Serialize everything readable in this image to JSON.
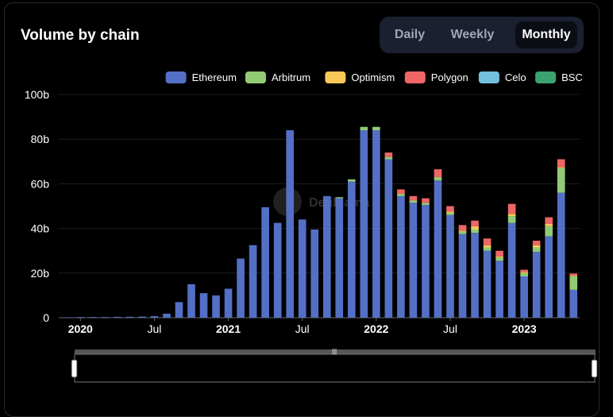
{
  "header": {
    "title": "Volume by chain"
  },
  "toggle": {
    "options": [
      "Daily",
      "Weekly",
      "Monthly"
    ],
    "active": "Monthly"
  },
  "watermark": "DefiLlama",
  "chart_data": {
    "type": "bar",
    "stacked": true,
    "ylim": [
      0,
      100
    ],
    "y_ticks": [
      "0",
      "20b",
      "40b",
      "60b",
      "80b",
      "100b"
    ],
    "x_ticks": [
      {
        "index": 1,
        "label": "2020",
        "bold": true
      },
      {
        "index": 7,
        "label": "Jul",
        "bold": false
      },
      {
        "index": 13,
        "label": "2021",
        "bold": true
      },
      {
        "index": 19,
        "label": "Jul",
        "bold": false
      },
      {
        "index": 25,
        "label": "2022",
        "bold": true
      },
      {
        "index": 31,
        "label": "Jul",
        "bold": false
      },
      {
        "index": 37,
        "label": "2023",
        "bold": true
      }
    ],
    "series": [
      {
        "name": "Ethereum",
        "color": "#5470c6",
        "values": [
          0.2,
          0.3,
          0.3,
          0.3,
          0.4,
          0.4,
          0.5,
          0.7,
          1.8,
          7,
          15,
          11,
          10,
          13,
          26.5,
          32.5,
          49.5,
          42.5,
          84,
          44,
          39.5,
          54.5,
          53.5,
          61,
          84,
          84,
          71,
          54.5,
          51.5,
          50.5,
          61.5,
          46,
          37.5,
          38,
          30,
          25.5,
          42.5,
          18.5,
          29.5,
          36.5,
          56,
          12.5
        ]
      },
      {
        "name": "Arbitrum",
        "color": "#91cc75",
        "values": [
          0,
          0,
          0,
          0,
          0,
          0,
          0,
          0,
          0,
          0,
          0,
          0,
          0,
          0,
          0,
          0,
          0,
          0,
          0,
          0,
          0,
          0,
          0.5,
          1,
          1.5,
          1.5,
          1,
          1,
          1,
          1,
          1.5,
          1,
          1,
          1.5,
          1.5,
          1.5,
          3,
          1.5,
          2,
          4.5,
          11,
          6
        ]
      },
      {
        "name": "Optimism",
        "color": "#fac858",
        "values": [
          0,
          0,
          0,
          0,
          0,
          0,
          0,
          0,
          0,
          0,
          0,
          0,
          0,
          0,
          0,
          0,
          0,
          0,
          0,
          0,
          0,
          0,
          0,
          0,
          0,
          0,
          0,
          0,
          0,
          0,
          0,
          0.5,
          0.5,
          1.5,
          1,
          0.5,
          1,
          0.5,
          1,
          1,
          0.5,
          0.3
        ]
      },
      {
        "name": "Polygon",
        "color": "#ee6666",
        "values": [
          0,
          0,
          0,
          0,
          0,
          0,
          0,
          0,
          0,
          0,
          0,
          0,
          0,
          0,
          0,
          0,
          0,
          0,
          0,
          0,
          0,
          0,
          0,
          0,
          0,
          0,
          2,
          2,
          2,
          2,
          3.5,
          2.5,
          2.5,
          2.5,
          3,
          2.5,
          4.5,
          1,
          2,
          3,
          3.5,
          1
        ]
      },
      {
        "name": "Celo",
        "color": "#73c0de",
        "values": [
          0,
          0,
          0,
          0,
          0,
          0,
          0,
          0,
          0,
          0,
          0,
          0,
          0,
          0,
          0,
          0,
          0,
          0,
          0,
          0,
          0,
          0,
          0,
          0,
          0,
          0,
          0,
          0,
          0,
          0,
          0,
          0,
          0,
          0,
          0,
          0,
          0,
          0,
          0,
          0,
          0,
          0
        ]
      },
      {
        "name": "BSC",
        "color": "#3ba272",
        "values": [
          0,
          0,
          0,
          0,
          0,
          0,
          0,
          0,
          0,
          0,
          0,
          0,
          0,
          0,
          0,
          0,
          0,
          0,
          0,
          0,
          0,
          0,
          0,
          0,
          0,
          0,
          0,
          0,
          0,
          0,
          0,
          0,
          0,
          0,
          0,
          0,
          0,
          0,
          0,
          0,
          0,
          0
        ]
      }
    ]
  }
}
